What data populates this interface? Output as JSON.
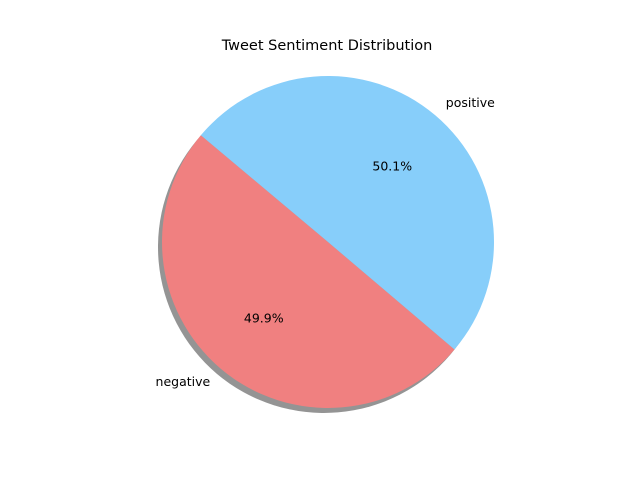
{
  "chart_data": {
    "type": "pie",
    "title": "Tweet Sentiment Distribution",
    "slices": [
      {
        "label": "negative",
        "value": 49.9,
        "pct_label": "49.9%",
        "color": "#F08080"
      },
      {
        "label": "positive",
        "value": 50.1,
        "pct_label": "50.1%",
        "color": "#87CEFA"
      }
    ],
    "start_angle_deg": 140,
    "direction": "counterclockwise",
    "shadow": true,
    "legend": "none"
  }
}
